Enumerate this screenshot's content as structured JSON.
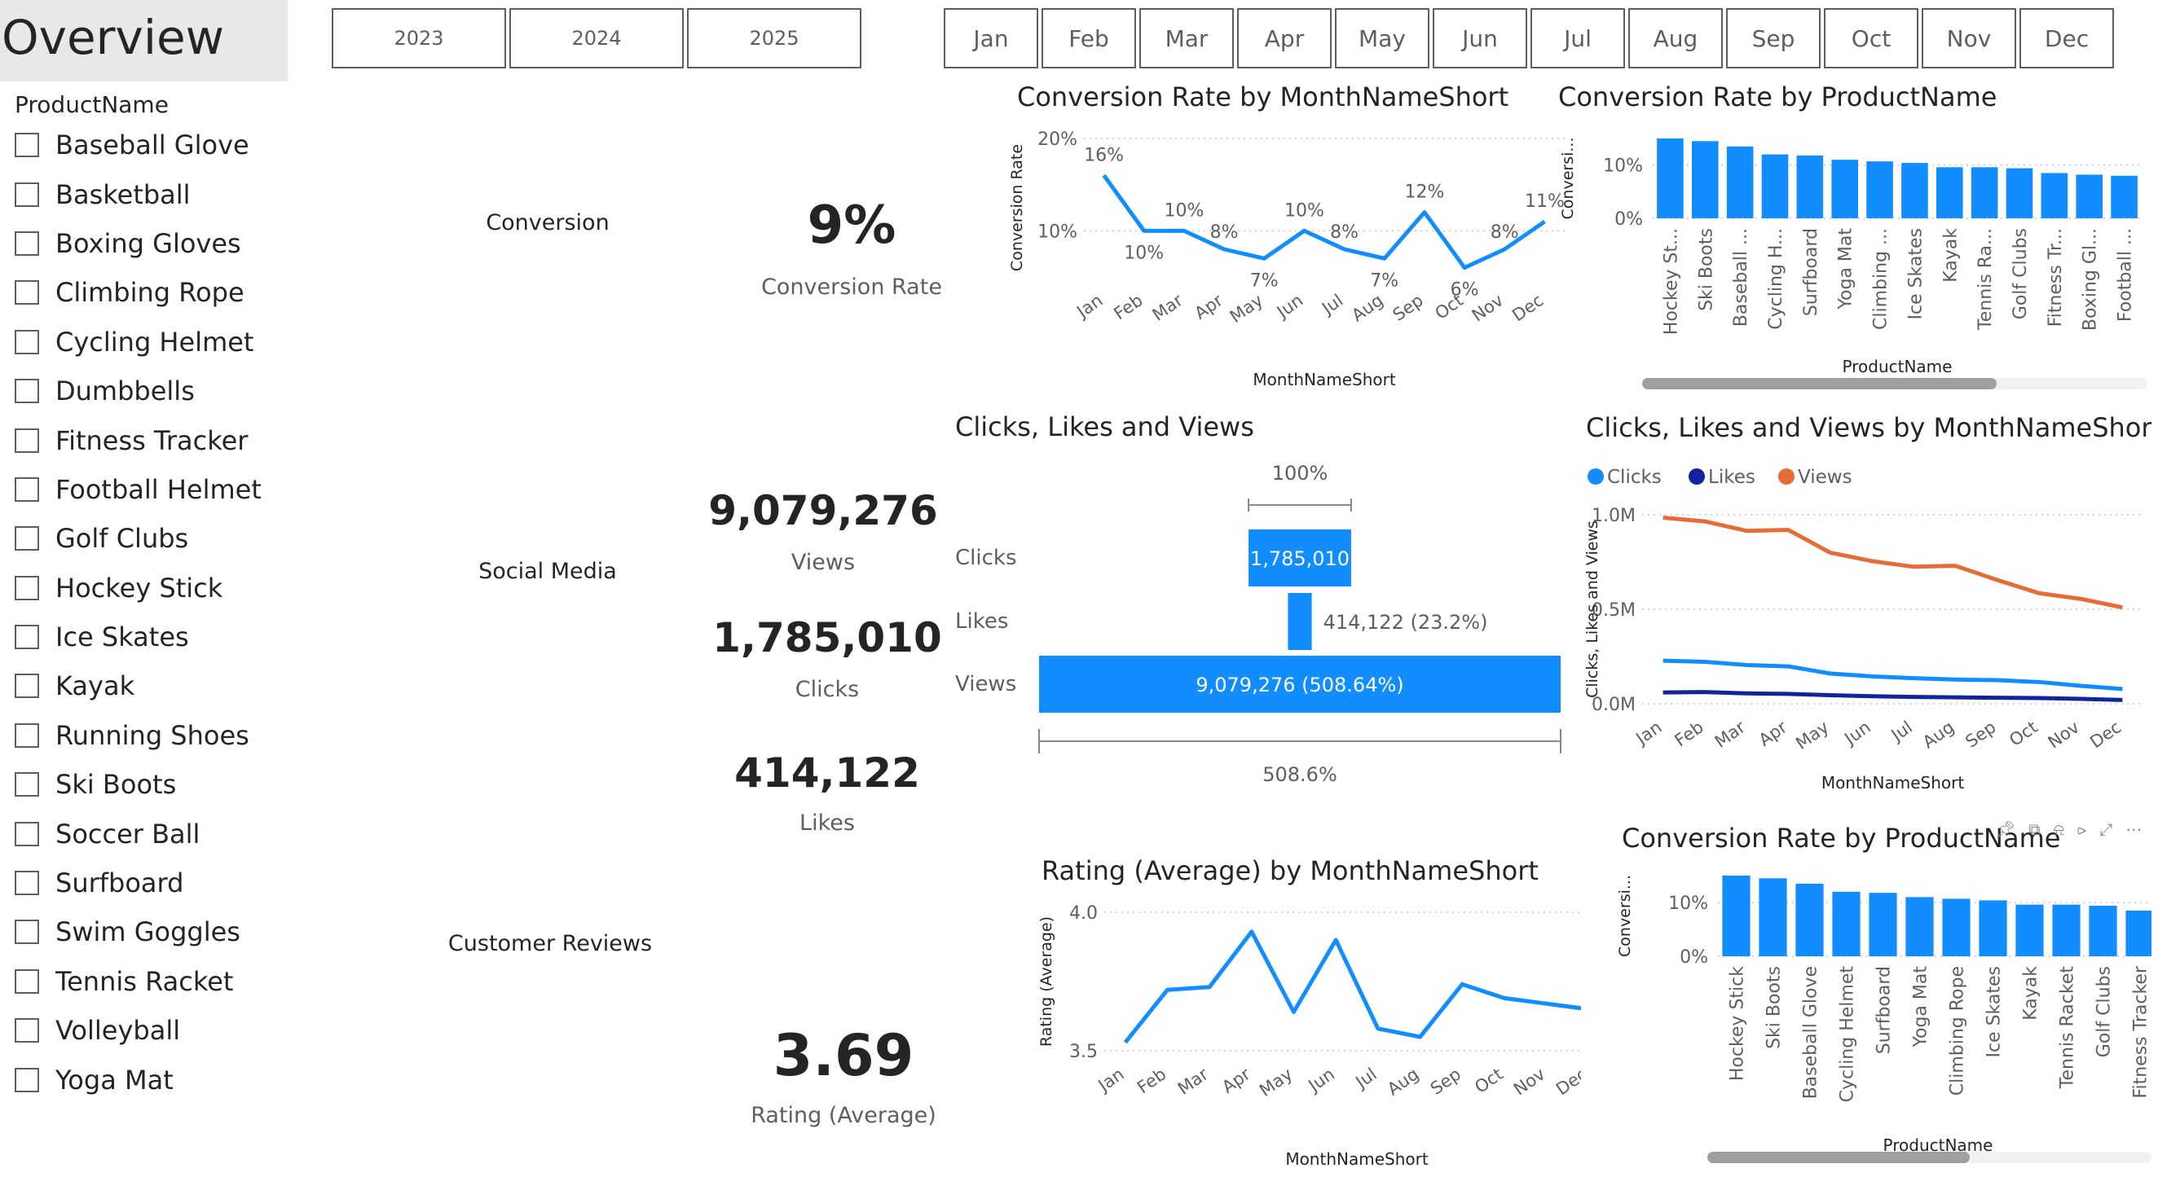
{
  "overview": {
    "title": "Overview"
  },
  "slicer": {
    "title": "ProductName",
    "items": [
      "Baseball Glove",
      "Basketball",
      "Boxing Gloves",
      "Climbing Rope",
      "Cycling Helmet",
      "Dumbbells",
      "Fitness Tracker",
      "Football Helmet",
      "Golf Clubs",
      "Hockey Stick",
      "Ice Skates",
      "Kayak",
      "Running Shoes",
      "Ski Boots",
      "Soccer Ball",
      "Surfboard",
      "Swim Goggles",
      "Tennis Racket",
      "Volleyball",
      "Yoga Mat"
    ]
  },
  "years": [
    "2023",
    "2024",
    "2025"
  ],
  "months": [
    "Jan",
    "Feb",
    "Mar",
    "Apr",
    "May",
    "Jun",
    "Jul",
    "Aug",
    "Sep",
    "Oct",
    "Nov",
    "Dec"
  ],
  "sections": {
    "conversion": "Conversion",
    "social": "Social Media",
    "reviews": "Customer Reviews"
  },
  "kpis": {
    "conversion_rate": {
      "value": "9%",
      "label": "Conversion Rate"
    },
    "views": {
      "value": "9,079,276",
      "label": "Views"
    },
    "clicks": {
      "value": "1,785,010",
      "label": "Clicks"
    },
    "likes": {
      "value": "414,122",
      "label": "Likes"
    },
    "rating": {
      "value": "3.69",
      "label": "Rating (Average)"
    }
  },
  "colors": {
    "blue": "#118dff",
    "dark_blue": "#12239e",
    "orange": "#e66c37",
    "text": "#252423",
    "muted": "#605e5c"
  },
  "chart_data": [
    {
      "id": "conv_by_month",
      "type": "line",
      "title": "Conversion Rate by MonthNameShort",
      "xlabel": "MonthNameShort",
      "ylabel": "Conversion Rate",
      "categories": [
        "Jan",
        "Feb",
        "Mar",
        "Apr",
        "May",
        "Jun",
        "Jul",
        "Aug",
        "Sep",
        "Oct",
        "Nov",
        "Dec"
      ],
      "values": [
        16,
        10,
        10,
        8,
        7,
        10,
        8,
        7,
        12,
        6,
        8,
        11
      ],
      "labels": [
        "16%",
        "10%",
        "10%",
        "8%",
        "7%",
        "10%",
        "8%",
        "7%",
        "12%",
        "6%",
        "8%",
        "11%"
      ],
      "ylim": [
        5,
        20
      ],
      "yticks": [
        {
          "v": 10,
          "t": "10%"
        },
        {
          "v": 20,
          "t": "20%"
        }
      ],
      "grid": true
    },
    {
      "id": "conv_by_product",
      "type": "bar",
      "title": "Conversion Rate by ProductName",
      "xlabel": "ProductName",
      "ylabel": "Conversi...",
      "categories": [
        "Hockey St...",
        "Ski Boots",
        "Baseball ...",
        "Cycling H...",
        "Surfboard",
        "Yoga Mat",
        "Climbing ...",
        "Ice Skates",
        "Kayak",
        "Tennis Ra...",
        "Golf Clubs",
        "Fitness Tr...",
        "Boxing Gl...",
        "Football ..."
      ],
      "values": [
        15.0,
        14.5,
        13.5,
        12.0,
        11.8,
        11.0,
        10.7,
        10.4,
        9.6,
        9.6,
        9.4,
        8.5,
        8.2,
        8.0
      ],
      "ylim": [
        0,
        15
      ],
      "yticks": [
        {
          "v": 0,
          "t": "0%"
        },
        {
          "v": 10,
          "t": "10%"
        }
      ],
      "grid": true
    },
    {
      "id": "funnel",
      "type": "bar",
      "title": "Clicks, Likes and Views",
      "categories": [
        "Clicks",
        "Likes",
        "Views"
      ],
      "values": [
        1785010,
        414122,
        9079276
      ],
      "labels": [
        "1,785,010",
        "414,122 (23.2%)",
        "9,079,276 (508.64%)"
      ],
      "top_annotation": "100%",
      "bottom_annotation": "508.6%"
    },
    {
      "id": "clv_by_month",
      "type": "line",
      "title": "Clicks, Likes and Views by MonthNameShort",
      "xlabel": "MonthNameShort",
      "ylabel": "Clicks, Likes and Views",
      "categories": [
        "Jan",
        "Feb",
        "Mar",
        "Apr",
        "May",
        "Jun",
        "Jul",
        "Aug",
        "Sep",
        "Oct",
        "Nov",
        "Dec"
      ],
      "series": [
        {
          "name": "Clicks",
          "values": [
            0.228,
            0.222,
            0.205,
            0.198,
            0.16,
            0.145,
            0.135,
            0.128,
            0.125,
            0.115,
            0.095,
            0.078
          ]
        },
        {
          "name": "Likes",
          "values": [
            0.06,
            0.062,
            0.055,
            0.052,
            0.045,
            0.04,
            0.036,
            0.034,
            0.032,
            0.03,
            0.026,
            0.02
          ]
        },
        {
          "name": "Views",
          "values": [
            0.985,
            0.965,
            0.915,
            0.92,
            0.8,
            0.755,
            0.725,
            0.73,
            0.655,
            0.585,
            0.555,
            0.51
          ]
        }
      ],
      "ylim": [
        0,
        1.0
      ],
      "yticks": [
        {
          "v": 0,
          "t": "0.0M"
        },
        {
          "v": 0.5,
          "t": "0.5M"
        },
        {
          "v": 1.0,
          "t": "1.0M"
        }
      ],
      "legend": "top-left",
      "grid": true
    },
    {
      "id": "rating_by_month",
      "type": "line",
      "title": "Rating (Average) by MonthNameShort",
      "xlabel": "MonthNameShort",
      "ylabel": "Rating (Average)",
      "categories": [
        "Jan",
        "Feb",
        "Mar",
        "Apr",
        "May",
        "Jun",
        "Jul",
        "Aug",
        "Sep",
        "Oct",
        "Nov",
        "Dec"
      ],
      "values": [
        3.53,
        3.72,
        3.73,
        3.93,
        3.64,
        3.9,
        3.58,
        3.55,
        3.74,
        3.69,
        3.67,
        3.65
      ],
      "ylim": [
        3.5,
        4.0
      ],
      "yticks": [
        {
          "v": 3.5,
          "t": "3.5"
        },
        {
          "v": 4.0,
          "t": "4.0"
        }
      ],
      "grid": true
    },
    {
      "id": "conv_by_product_2",
      "type": "bar",
      "title": "Conversion Rate by ProductName",
      "xlabel": "ProductName",
      "ylabel": "Conversi...",
      "categories": [
        "Hockey Stick",
        "Ski Boots",
        "Baseball Glove",
        "Cycling Helmet",
        "Surfboard",
        "Yoga Mat",
        "Climbing Rope",
        "Ice Skates",
        "Kayak",
        "Tennis Racket",
        "Golf Clubs",
        "Fitness Tracker"
      ],
      "values": [
        15.0,
        14.5,
        13.5,
        12.0,
        11.8,
        11.0,
        10.7,
        10.4,
        9.6,
        9.6,
        9.4,
        8.5
      ],
      "ylim": [
        0,
        15
      ],
      "yticks": [
        {
          "v": 0,
          "t": "0%"
        },
        {
          "v": 10,
          "t": "10%"
        }
      ],
      "grid": true
    }
  ]
}
